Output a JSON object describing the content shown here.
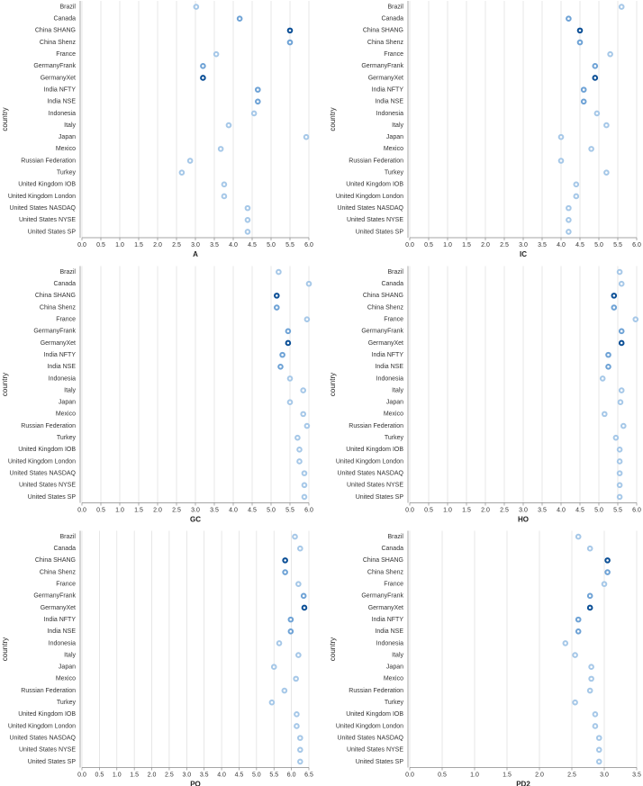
{
  "chart_data": [
    {
      "type": "dot",
      "xlabel": "A",
      "ylabel": "country",
      "categories": [
        "Brazil",
        "Canada",
        "China SHANG",
        "China Shenz",
        "France",
        "GermanyFrank",
        "GermanyXet",
        "India NFTY",
        "India NSE",
        "Indonesia",
        "Italy",
        "Japan",
        "Mexico",
        "Russian Federation",
        "Turkey",
        "United Kingdom IOB",
        "United Kingdom London",
        "United States NASDAQ",
        "United States NYSE",
        "United States SP"
      ],
      "values": [
        3.02,
        4.17,
        5.5,
        5.5,
        3.55,
        3.2,
        3.2,
        4.65,
        4.65,
        4.55,
        3.88,
        5.93,
        3.67,
        2.86,
        2.64,
        3.76,
        3.76,
        4.38,
        4.38,
        4.38
      ],
      "colors": [
        "#a6c8e8",
        "#6fa3d6",
        "#0b4f96",
        "#6fa3d6",
        "#a6c8e8",
        "#6fa3d6",
        "#0b4f96",
        "#6fa3d6",
        "#6fa3d6",
        "#a6c8e8",
        "#a6c8e8",
        "#a6c8e8",
        "#a6c8e8",
        "#a6c8e8",
        "#a6c8e8",
        "#a6c8e8",
        "#a6c8e8",
        "#a6c8e8",
        "#a6c8e8",
        "#a6c8e8"
      ],
      "xlim": [
        0,
        6
      ],
      "xticks": [
        {
          "value": 0,
          "label": "0.0"
        },
        0.5,
        {
          "value": 1,
          "label": "1.0"
        },
        1.5,
        {
          "value": 2,
          "label": "2.0"
        },
        2.5,
        {
          "value": 3,
          "label": "3.0"
        },
        3.5,
        {
          "value": 4,
          "label": "4.0"
        },
        4.5,
        {
          "value": 5,
          "label": "5.0"
        },
        5.5,
        {
          "value": 6,
          "label": "6.0"
        }
      ],
      "grid": true
    },
    {
      "type": "dot",
      "xlabel": "IC",
      "ylabel": "country",
      "categories": [
        "Brazil",
        "Canada",
        "China SHANG",
        "China Shenz",
        "France",
        "GermanyFrank",
        "GermanyXet",
        "India NFTY",
        "India NSE",
        "Indonesia",
        "Italy",
        "Japan",
        "Mexico",
        "Russian Federation",
        "Turkey",
        "United Kingdom IOB",
        "United Kingdom London",
        "United States NASDAQ",
        "United States NYSE",
        "United States SP"
      ],
      "values": [
        5.6,
        4.2,
        4.5,
        4.5,
        5.3,
        4.9,
        4.9,
        4.6,
        4.6,
        4.95,
        5.2,
        4.0,
        4.8,
        4.0,
        5.2,
        4.4,
        4.4,
        4.2,
        4.2,
        4.2
      ],
      "colors": [
        "#a6c8e8",
        "#6fa3d6",
        "#0b4f96",
        "#6fa3d6",
        "#a6c8e8",
        "#6fa3d6",
        "#0b4f96",
        "#6fa3d6",
        "#6fa3d6",
        "#a6c8e8",
        "#a6c8e8",
        "#a6c8e8",
        "#a6c8e8",
        "#a6c8e8",
        "#a6c8e8",
        "#a6c8e8",
        "#a6c8e8",
        "#a6c8e8",
        "#a6c8e8",
        "#a6c8e8"
      ],
      "xlim": [
        0,
        6
      ],
      "xticks": [
        {
          "value": 0,
          "label": "0.0"
        },
        0.5,
        {
          "value": 1,
          "label": "1.0"
        },
        1.5,
        {
          "value": 2,
          "label": "2.0"
        },
        2.5,
        {
          "value": 3,
          "label": "3.0"
        },
        3.5,
        {
          "value": 4,
          "label": "4.0"
        },
        4.5,
        {
          "value": 5,
          "label": "5.0"
        },
        5.5,
        {
          "value": 6,
          "label": "6.0"
        }
      ],
      "grid": true
    },
    {
      "type": "dot",
      "xlabel": "GC",
      "ylabel": "country",
      "categories": [
        "Brazil",
        "Canada",
        "China SHANG",
        "China Shenz",
        "France",
        "GermanyFrank",
        "GermanyXet",
        "India NFTY",
        "India NSE",
        "Indonesia",
        "Italy",
        "Japan",
        "Mexico",
        "Russian Federation",
        "Turkey",
        "United Kingdom IOB",
        "United Kingdom London",
        "United States NASDAQ",
        "United States NYSE",
        "United States SP"
      ],
      "values": [
        5.2,
        6.0,
        5.15,
        5.15,
        5.95,
        5.45,
        5.45,
        5.3,
        5.25,
        5.5,
        5.85,
        5.5,
        5.85,
        5.95,
        5.7,
        5.75,
        5.75,
        5.88,
        5.88,
        5.88
      ],
      "colors": [
        "#a6c8e8",
        "#a6c8e8",
        "#0b4f96",
        "#6fa3d6",
        "#a6c8e8",
        "#6fa3d6",
        "#0b4f96",
        "#6fa3d6",
        "#6fa3d6",
        "#a6c8e8",
        "#a6c8e8",
        "#a6c8e8",
        "#a6c8e8",
        "#a6c8e8",
        "#a6c8e8",
        "#a6c8e8",
        "#a6c8e8",
        "#a6c8e8",
        "#a6c8e8",
        "#a6c8e8"
      ],
      "xlim": [
        0,
        6
      ],
      "xticks": [
        {
          "value": 0,
          "label": "0.0"
        },
        0.5,
        {
          "value": 1,
          "label": "1.0"
        },
        1.5,
        {
          "value": 2,
          "label": "2.0"
        },
        2.5,
        {
          "value": 3,
          "label": "3.0"
        },
        3.5,
        {
          "value": 4,
          "label": "4.0"
        },
        4.5,
        {
          "value": 5,
          "label": "5.0"
        },
        5.5,
        {
          "value": 6,
          "label": "6.0"
        }
      ],
      "grid": true
    },
    {
      "type": "dot",
      "xlabel": "HO",
      "ylabel": "country",
      "categories": [
        "Brazil",
        "Canada",
        "China SHANG",
        "China Shenz",
        "France",
        "GermanyFrank",
        "GermanyXet",
        "India NFTY",
        "India NSE",
        "Indonesia",
        "Italy",
        "Japan",
        "Mexico",
        "Russian Federation",
        "Turkey",
        "United Kingdom IOB",
        "United Kingdom London",
        "United States NASDAQ",
        "United States NYSE",
        "United States SP"
      ],
      "values": [
        5.55,
        5.6,
        5.4,
        5.4,
        5.97,
        5.6,
        5.6,
        5.25,
        5.25,
        5.1,
        5.6,
        5.57,
        5.15,
        5.65,
        5.45,
        5.55,
        5.55,
        5.55,
        5.55,
        5.55
      ],
      "colors": [
        "#a6c8e8",
        "#a6c8e8",
        "#0b4f96",
        "#6fa3d6",
        "#a6c8e8",
        "#6fa3d6",
        "#0b4f96",
        "#6fa3d6",
        "#6fa3d6",
        "#a6c8e8",
        "#a6c8e8",
        "#a6c8e8",
        "#a6c8e8",
        "#a6c8e8",
        "#a6c8e8",
        "#a6c8e8",
        "#a6c8e8",
        "#a6c8e8",
        "#a6c8e8",
        "#a6c8e8"
      ],
      "xlim": [
        0,
        6
      ],
      "xticks": [
        {
          "value": 0,
          "label": "0.0"
        },
        0.5,
        {
          "value": 1,
          "label": "1.0"
        },
        1.5,
        {
          "value": 2,
          "label": "2.0"
        },
        2.5,
        {
          "value": 3,
          "label": "3.0"
        },
        3.5,
        {
          "value": 4,
          "label": "4.0"
        },
        4.5,
        {
          "value": 5,
          "label": "5.0"
        },
        5.5,
        {
          "value": 6,
          "label": "6.0"
        }
      ],
      "grid": true
    },
    {
      "type": "dot",
      "xlabel": "PO",
      "ylabel": "country",
      "categories": [
        "Brazil",
        "Canada",
        "China SHANG",
        "China Shenz",
        "France",
        "GermanyFrank",
        "GermanyXet",
        "India NFTY",
        "India NSE",
        "Indonesia",
        "Italy",
        "Japan",
        "Mexico",
        "Russian Federation",
        "Turkey",
        "United Kingdom IOB",
        "United Kingdom London",
        "United States NASDAQ",
        "United States NYSE",
        "United States SP"
      ],
      "values": [
        6.1,
        6.25,
        5.82,
        5.82,
        6.2,
        6.35,
        6.37,
        5.98,
        5.98,
        5.65,
        6.2,
        5.5,
        6.13,
        5.8,
        5.44,
        6.15,
        6.15,
        6.25,
        6.25,
        6.25
      ],
      "colors": [
        "#a6c8e8",
        "#a6c8e8",
        "#0b4f96",
        "#6fa3d6",
        "#a6c8e8",
        "#6fa3d6",
        "#0b4f96",
        "#6fa3d6",
        "#6fa3d6",
        "#a6c8e8",
        "#a6c8e8",
        "#a6c8e8",
        "#a6c8e8",
        "#a6c8e8",
        "#a6c8e8",
        "#a6c8e8",
        "#a6c8e8",
        "#a6c8e8",
        "#a6c8e8",
        "#a6c8e8"
      ],
      "xlim": [
        0,
        6.5
      ],
      "xticks": [
        {
          "value": 0,
          "label": "0.0"
        },
        0.5,
        {
          "value": 1,
          "label": "1.0"
        },
        1.5,
        {
          "value": 2,
          "label": "2.0"
        },
        2.5,
        {
          "value": 3,
          "label": "3.0"
        },
        3.5,
        {
          "value": 4,
          "label": "4.0"
        },
        4.5,
        {
          "value": 5,
          "label": "5.0"
        },
        5.5,
        {
          "value": 6,
          "label": "6.0"
        },
        6.5
      ],
      "grid": true
    },
    {
      "type": "dot",
      "xlabel": "PD2",
      "ylabel": "country",
      "categories": [
        "Brazil",
        "Canada",
        "China SHANG",
        "China Shenz",
        "France",
        "GermanyFrank",
        "GermanyXet",
        "India NFTY",
        "India NSE",
        "Indonesia",
        "Italy",
        "Japan",
        "Mexico",
        "Russian Federation",
        "Turkey",
        "United Kingdom IOB",
        "United Kingdom London",
        "United States NASDAQ",
        "United States NYSE",
        "United States SP"
      ],
      "values": [
        2.6,
        2.78,
        3.05,
        3.05,
        3.0,
        2.78,
        2.78,
        2.6,
        2.6,
        2.4,
        2.55,
        2.8,
        2.8,
        2.78,
        2.55,
        2.86,
        2.86,
        2.92,
        2.92,
        2.92
      ],
      "colors": [
        "#a6c8e8",
        "#a6c8e8",
        "#0b4f96",
        "#6fa3d6",
        "#a6c8e8",
        "#6fa3d6",
        "#0b4f96",
        "#6fa3d6",
        "#6fa3d6",
        "#a6c8e8",
        "#a6c8e8",
        "#a6c8e8",
        "#a6c8e8",
        "#a6c8e8",
        "#a6c8e8",
        "#a6c8e8",
        "#a6c8e8",
        "#a6c8e8",
        "#a6c8e8",
        "#a6c8e8"
      ],
      "xlim": [
        0,
        3.5
      ],
      "xticks": [
        {
          "value": 0,
          "label": "0.0"
        },
        0.5,
        {
          "value": 1,
          "label": "1.0"
        },
        1.5,
        {
          "value": 2,
          "label": "2.0"
        },
        2.5,
        {
          "value": 3,
          "label": "3.0"
        },
        3.5
      ],
      "grid": true
    }
  ]
}
